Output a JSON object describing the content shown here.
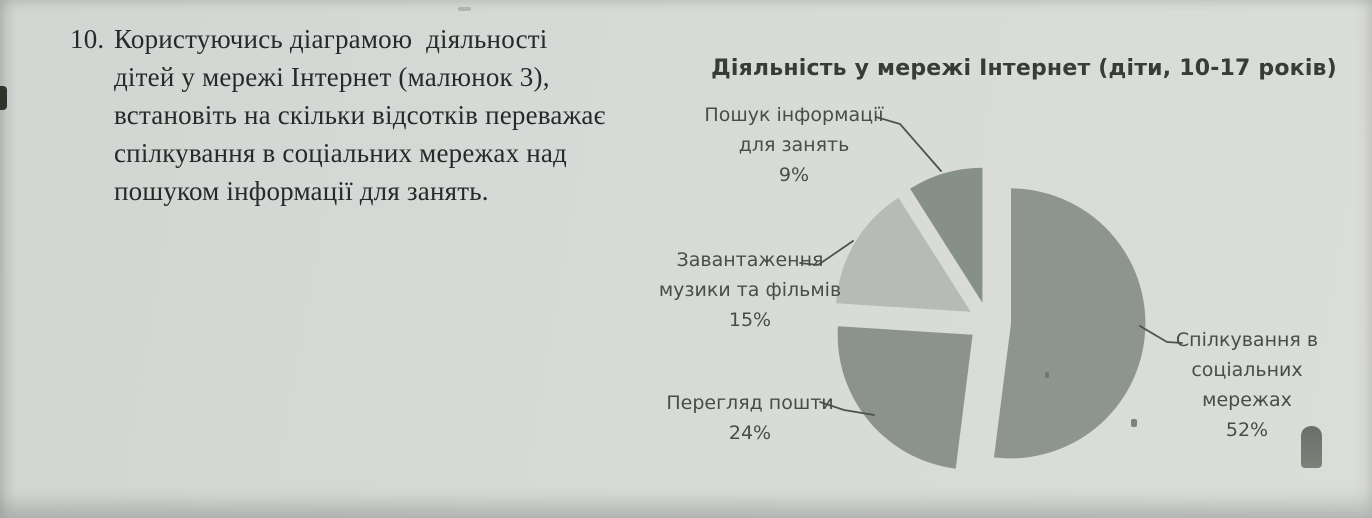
{
  "background_color": "#d7dad6",
  "question": {
    "number": "10.",
    "lines": [
      "Користуючись діаграмою  діяльності",
      "дітей у мережі Інтернет (малюнок 3),",
      "встановіть на скільки відсотків переважає",
      "спілкування в соціальних мережах над",
      "пошуком інформації для занять."
    ]
  },
  "chart_data": {
    "type": "pie",
    "title": "Діяльність у мережі Інтернет (діти, 10-17 років)",
    "unit": "%",
    "exploded": true,
    "clockwise": true,
    "start_angle_deg": 0,
    "legend_position": "callouts",
    "slices": [
      {
        "label": "Спілкування в соціальних мережах",
        "value": 52,
        "color": "#8d958e"
      },
      {
        "label": "Перегляд пошти",
        "value": 24,
        "color": "#8b938c"
      },
      {
        "label": "Завантаження музики та фільмів",
        "value": 15,
        "color": "#b6bcb5"
      },
      {
        "label": "Пошук інформації для занять",
        "value": 9,
        "color": "#879088"
      }
    ]
  },
  "callouts": [
    {
      "id": "poshuk",
      "lines": [
        "Пошук інформації",
        "для занять",
        "9%"
      ]
    },
    {
      "id": "zavantazhennia",
      "lines": [
        "Завантаження",
        "музики та фільмів",
        "15%"
      ]
    },
    {
      "id": "perehliad",
      "lines": [
        "Перегляд пошти",
        "24%"
      ]
    },
    {
      "id": "spilkuvannia",
      "lines": [
        "Спілкування в",
        "соціальних",
        "мережах",
        "52%"
      ]
    }
  ]
}
